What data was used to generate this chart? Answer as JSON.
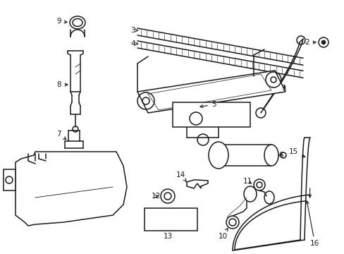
{
  "bg_color": "#ffffff",
  "lc": "#1a1a1a",
  "figw": 4.89,
  "figh": 3.6,
  "dpi": 100
}
